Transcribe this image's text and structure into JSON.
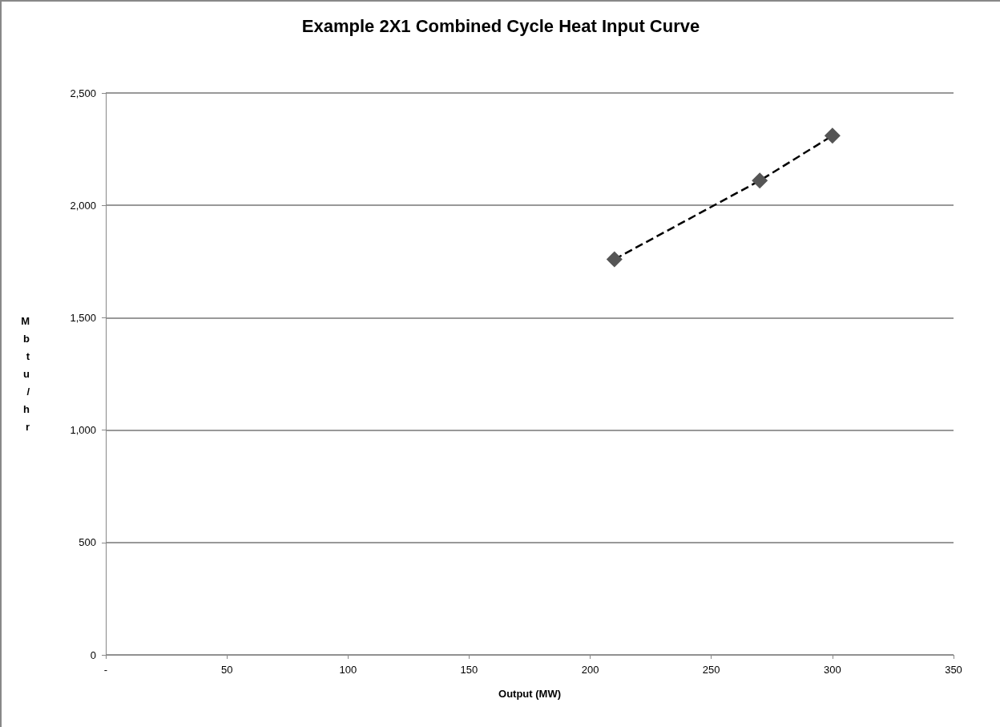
{
  "chart_data": {
    "type": "line",
    "title": "Example 2X1 Combined Cycle Heat Input Curve",
    "xlabel": "Output (MW)",
    "ylabel": "Mbtu/hr",
    "series": [
      {
        "color": "#555555",
        "x": [
          210,
          270,
          300
        ],
        "values": [
          1760,
          2110,
          2310
        ]
      }
    ],
    "xlim": [
      0,
      350
    ],
    "xticks": [
      {
        "value": 0,
        "label": "-"
      },
      50,
      100,
      150,
      200,
      250,
      300,
      350
    ],
    "ylim": [
      0,
      2500
    ],
    "yticks": [
      0,
      500,
      {
        "value": 1000,
        "label": "1,000"
      },
      {
        "value": 1500,
        "label": "1,500"
      },
      {
        "value": 2000,
        "label": "2,000"
      },
      {
        "value": 2500,
        "label": "2,500"
      }
    ],
    "grid": "y",
    "marker": "diamond",
    "line_style": "dashed"
  }
}
